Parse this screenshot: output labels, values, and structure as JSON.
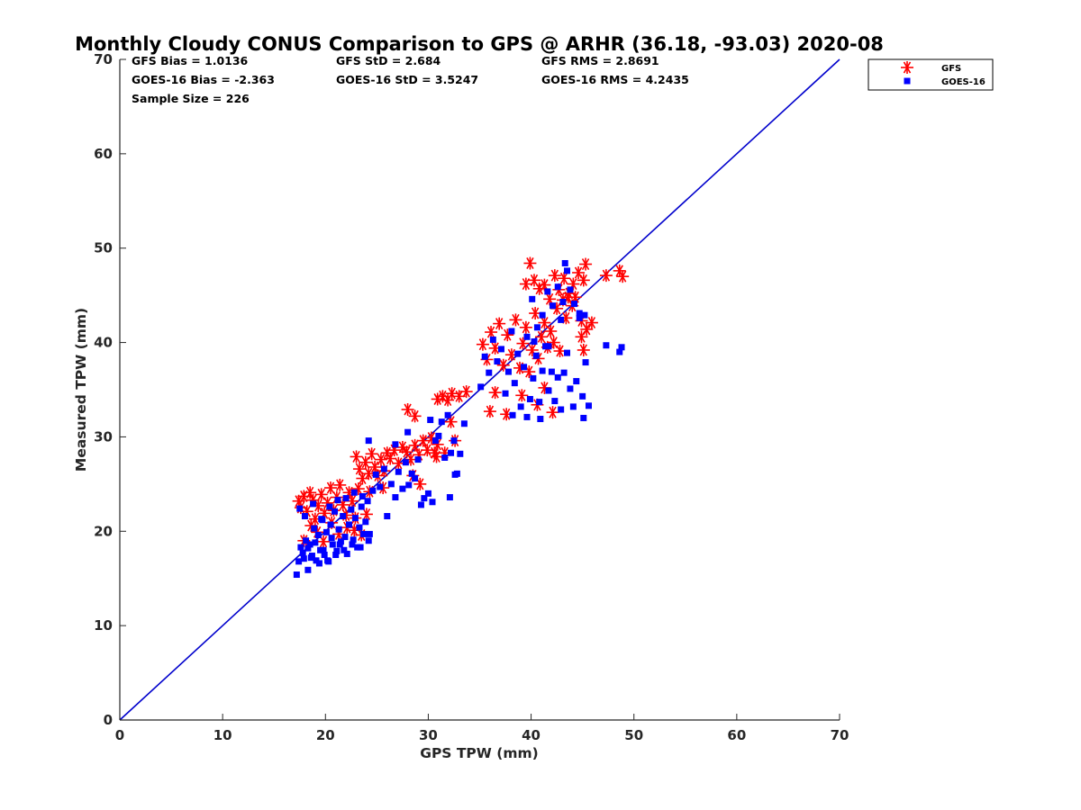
{
  "chart_data": {
    "type": "scatter",
    "title": "Monthly Cloudy CONUS Comparison to GPS @ ARHR (36.18, -93.03) 2020-08",
    "xlabel": "GPS TPW (mm)",
    "ylabel": "Measured TPW (mm)",
    "xlim": [
      0,
      70
    ],
    "ylim": [
      0,
      70
    ],
    "xticks": [
      "0",
      "10",
      "20",
      "30",
      "40",
      "50",
      "60",
      "70"
    ],
    "yticks": [
      "0",
      "10",
      "20",
      "30",
      "40",
      "50",
      "60",
      "70"
    ],
    "grid": false,
    "legend_position": "outside-top-right",
    "stats": [
      [
        "GFS Bias = 1.0136",
        "GFS StD = 2.684",
        "GFS RMS = 2.8691"
      ],
      [
        "GOES-16 Bias = -2.363",
        "GOES-16 StD = 3.5247",
        "GOES-16 RMS = 4.2435"
      ],
      [
        "Sample Size = 226"
      ]
    ],
    "reference_line": {
      "x": [
        0,
        70
      ],
      "y": [
        0,
        70
      ],
      "color": "#0000cc"
    },
    "series": [
      {
        "name": "GFS",
        "marker": "asterisk",
        "color": "#ff0000",
        "points": [
          [
            17.4,
            23.2
          ],
          [
            17.6,
            22.5
          ],
          [
            17.9,
            23.7
          ],
          [
            18.2,
            22.1
          ],
          [
            18.5,
            24.1
          ],
          [
            18.8,
            23.3
          ],
          [
            19.0,
            21.3
          ],
          [
            19.3,
            22.7
          ],
          [
            19.6,
            23.9
          ],
          [
            19.9,
            21.9
          ],
          [
            20.2,
            23.0
          ],
          [
            20.5,
            24.6
          ],
          [
            20.8,
            22.2
          ],
          [
            21.1,
            23.6
          ],
          [
            21.4,
            24.9
          ],
          [
            21.7,
            22.8
          ],
          [
            22.0,
            21.7
          ],
          [
            22.3,
            24.1
          ],
          [
            22.6,
            23.2
          ],
          [
            22.9,
            21.4
          ],
          [
            23.2,
            24.5
          ],
          [
            17.9,
            19.0
          ],
          [
            18.6,
            20.6
          ],
          [
            19.2,
            19.9
          ],
          [
            19.8,
            18.9
          ],
          [
            20.6,
            20.9
          ],
          [
            21.3,
            19.7
          ],
          [
            22.1,
            20.4
          ],
          [
            22.8,
            20.1
          ],
          [
            23.5,
            19.6
          ],
          [
            24.0,
            21.8
          ],
          [
            23.0,
            27.9
          ],
          [
            23.3,
            26.6
          ],
          [
            23.6,
            25.6
          ],
          [
            23.9,
            27.3
          ],
          [
            24.2,
            26.1
          ],
          [
            24.5,
            28.2
          ],
          [
            24.8,
            26.8
          ],
          [
            25.1,
            25.9
          ],
          [
            25.4,
            27.6
          ],
          [
            25.7,
            26.4
          ],
          [
            26.0,
            28.3
          ],
          [
            24.3,
            24.2
          ],
          [
            25.6,
            24.6
          ],
          [
            26.3,
            27.7
          ],
          [
            26.7,
            28.6
          ],
          [
            27.1,
            27.2
          ],
          [
            27.5,
            28.9
          ],
          [
            27.9,
            28.4
          ],
          [
            28.3,
            27.6
          ],
          [
            28.7,
            29.1
          ],
          [
            29.1,
            28.1
          ],
          [
            29.5,
            29.6
          ],
          [
            29.9,
            28.6
          ],
          [
            30.3,
            29.9
          ],
          [
            30.6,
            28.3
          ],
          [
            30.9,
            29.2
          ],
          [
            29.2,
            25.0
          ],
          [
            28.5,
            25.9
          ],
          [
            28.0,
            32.9
          ],
          [
            28.7,
            32.2
          ],
          [
            30.9,
            34.0
          ],
          [
            31.4,
            34.3
          ],
          [
            31.9,
            33.9
          ],
          [
            32.3,
            34.6
          ],
          [
            33.0,
            34.3
          ],
          [
            33.7,
            34.8
          ],
          [
            32.6,
            29.6
          ],
          [
            31.6,
            28.3
          ],
          [
            30.8,
            27.9
          ],
          [
            32.2,
            31.6
          ],
          [
            35.3,
            39.8
          ],
          [
            35.7,
            38.2
          ],
          [
            36.1,
            41.1
          ],
          [
            36.5,
            39.4
          ],
          [
            36.9,
            42.0
          ],
          [
            37.3,
            37.6
          ],
          [
            37.7,
            40.8
          ],
          [
            38.1,
            38.7
          ],
          [
            38.5,
            42.4
          ],
          [
            38.9,
            37.3
          ],
          [
            39.2,
            39.9
          ],
          [
            39.5,
            41.6
          ],
          [
            39.8,
            36.9
          ],
          [
            40.1,
            39.2
          ],
          [
            40.4,
            43.1
          ],
          [
            40.7,
            38.3
          ],
          [
            41.0,
            40.6
          ],
          [
            41.3,
            42.1
          ],
          [
            41.6,
            39.5
          ],
          [
            41.9,
            41.2
          ],
          [
            42.2,
            40.0
          ],
          [
            42.5,
            43.6
          ],
          [
            42.8,
            39.1
          ],
          [
            43.1,
            44.5
          ],
          [
            43.4,
            42.6
          ],
          [
            43.7,
            45.2
          ],
          [
            44.0,
            43.9
          ],
          [
            44.3,
            44.8
          ],
          [
            39.5,
            46.2
          ],
          [
            39.9,
            48.4
          ],
          [
            40.3,
            46.6
          ],
          [
            40.8,
            45.7
          ],
          [
            41.3,
            46.1
          ],
          [
            41.8,
            44.6
          ],
          [
            42.3,
            47.1
          ],
          [
            42.7,
            45.6
          ],
          [
            43.2,
            46.8
          ],
          [
            43.6,
            44.8
          ],
          [
            44.1,
            46.2
          ],
          [
            44.6,
            47.4
          ],
          [
            45.1,
            46.6
          ],
          [
            45.3,
            48.3
          ],
          [
            44.9,
            42.3
          ],
          [
            45.4,
            41.4
          ],
          [
            45.9,
            42.1
          ],
          [
            44.9,
            40.6
          ],
          [
            45.1,
            39.2
          ],
          [
            36.0,
            32.7
          ],
          [
            36.5,
            34.7
          ],
          [
            37.6,
            32.4
          ],
          [
            39.1,
            34.4
          ],
          [
            40.6,
            33.4
          ],
          [
            41.3,
            35.2
          ],
          [
            42.1,
            32.6
          ],
          [
            47.3,
            47.1
          ],
          [
            48.6,
            47.6
          ],
          [
            48.9,
            47.0
          ]
        ]
      },
      {
        "name": "GOES-16",
        "marker": "square",
        "color": "#0000ff",
        "points": [
          [
            17.2,
            15.4
          ],
          [
            17.4,
            16.8
          ],
          [
            17.6,
            18.3
          ],
          [
            17.9,
            17.1
          ],
          [
            18.1,
            19.0
          ],
          [
            18.3,
            15.9
          ],
          [
            18.5,
            18.6
          ],
          [
            18.7,
            17.4
          ],
          [
            18.9,
            20.3
          ],
          [
            19.1,
            16.9
          ],
          [
            19.3,
            19.6
          ],
          [
            19.5,
            18.0
          ],
          [
            19.7,
            21.2
          ],
          [
            19.9,
            17.5
          ],
          [
            20.1,
            19.9
          ],
          [
            20.3,
            16.8
          ],
          [
            20.5,
            20.7
          ],
          [
            20.7,
            18.6
          ],
          [
            20.9,
            22.1
          ],
          [
            21.1,
            17.9
          ],
          [
            21.3,
            20.2
          ],
          [
            21.5,
            18.9
          ],
          [
            21.7,
            21.6
          ],
          [
            21.9,
            19.4
          ],
          [
            22.1,
            17.6
          ],
          [
            22.3,
            20.7
          ],
          [
            22.5,
            22.3
          ],
          [
            22.7,
            19.1
          ],
          [
            22.9,
            21.4
          ],
          [
            23.1,
            18.3
          ],
          [
            23.3,
            20.4
          ],
          [
            23.5,
            22.6
          ],
          [
            23.7,
            19.7
          ],
          [
            23.9,
            21.0
          ],
          [
            24.1,
            23.2
          ],
          [
            24.3,
            19.7
          ],
          [
            17.5,
            22.4
          ],
          [
            18.0,
            21.6
          ],
          [
            18.8,
            22.9
          ],
          [
            19.6,
            21.3
          ],
          [
            20.4,
            22.6
          ],
          [
            21.2,
            23.3
          ],
          [
            22.0,
            23.5
          ],
          [
            22.8,
            24.1
          ],
          [
            23.6,
            23.7
          ],
          [
            17.8,
            17.7
          ],
          [
            18.6,
            17.2
          ],
          [
            19.4,
            16.6
          ],
          [
            20.2,
            16.9
          ],
          [
            21.0,
            17.5
          ],
          [
            21.8,
            18.0
          ],
          [
            22.6,
            18.6
          ],
          [
            23.4,
            18.3
          ],
          [
            24.2,
            19.0
          ],
          [
            18.3,
            18.2
          ],
          [
            19.0,
            18.8
          ],
          [
            19.8,
            18.0
          ],
          [
            20.6,
            19.3
          ],
          [
            21.4,
            18.6
          ],
          [
            24.2,
            29.6
          ],
          [
            24.6,
            24.3
          ],
          [
            24.9,
            26.0
          ],
          [
            25.3,
            24.7
          ],
          [
            25.7,
            26.6
          ],
          [
            26.0,
            21.6
          ],
          [
            26.4,
            25.0
          ],
          [
            26.8,
            23.6
          ],
          [
            27.1,
            26.3
          ],
          [
            27.5,
            24.5
          ],
          [
            27.8,
            27.3
          ],
          [
            28.1,
            24.9
          ],
          [
            28.4,
            26.1
          ],
          [
            28.7,
            25.6
          ],
          [
            29.0,
            27.6
          ],
          [
            29.3,
            22.8
          ],
          [
            29.6,
            23.5
          ],
          [
            30.0,
            24.0
          ],
          [
            30.4,
            23.1
          ],
          [
            30.7,
            29.6
          ],
          [
            31.0,
            30.1
          ],
          [
            31.3,
            31.6
          ],
          [
            31.6,
            27.8
          ],
          [
            31.9,
            32.3
          ],
          [
            32.2,
            28.3
          ],
          [
            32.5,
            29.6
          ],
          [
            32.8,
            26.1
          ],
          [
            33.1,
            28.2
          ],
          [
            33.5,
            31.4
          ],
          [
            32.1,
            23.6
          ],
          [
            32.6,
            26.0
          ],
          [
            30.2,
            31.8
          ],
          [
            26.8,
            29.2
          ],
          [
            28.0,
            30.5
          ],
          [
            35.1,
            35.3
          ],
          [
            35.5,
            38.5
          ],
          [
            35.9,
            36.8
          ],
          [
            36.3,
            40.3
          ],
          [
            36.7,
            38.0
          ],
          [
            37.1,
            39.3
          ],
          [
            37.5,
            34.6
          ],
          [
            37.8,
            36.9
          ],
          [
            38.1,
            41.2
          ],
          [
            38.4,
            35.7
          ],
          [
            38.7,
            38.8
          ],
          [
            39.0,
            33.2
          ],
          [
            39.3,
            37.4
          ],
          [
            39.6,
            40.6
          ],
          [
            39.9,
            34.0
          ],
          [
            40.2,
            36.2
          ],
          [
            40.5,
            38.6
          ],
          [
            40.8,
            33.7
          ],
          [
            41.1,
            37.0
          ],
          [
            41.4,
            39.6
          ],
          [
            41.7,
            34.9
          ],
          [
            42.0,
            36.9
          ],
          [
            42.3,
            33.8
          ],
          [
            42.6,
            36.3
          ],
          [
            42.9,
            32.9
          ],
          [
            43.2,
            36.8
          ],
          [
            43.5,
            38.9
          ],
          [
            43.8,
            35.1
          ],
          [
            44.1,
            33.2
          ],
          [
            44.4,
            35.9
          ],
          [
            44.7,
            42.6
          ],
          [
            45.0,
            34.3
          ],
          [
            45.3,
            37.9
          ],
          [
            45.6,
            33.3
          ],
          [
            38.2,
            32.3
          ],
          [
            39.6,
            32.1
          ],
          [
            40.9,
            31.9
          ],
          [
            45.1,
            32.0
          ],
          [
            47.3,
            39.7
          ],
          [
            48.6,
            39.0
          ],
          [
            48.8,
            39.5
          ],
          [
            40.1,
            44.6
          ],
          [
            40.6,
            41.6
          ],
          [
            41.1,
            42.9
          ],
          [
            41.6,
            45.4
          ],
          [
            42.1,
            43.9
          ],
          [
            42.6,
            45.9
          ],
          [
            43.1,
            44.3
          ],
          [
            43.3,
            48.4
          ],
          [
            43.5,
            47.6
          ],
          [
            43.8,
            45.6
          ],
          [
            44.2,
            44.1
          ],
          [
            44.7,
            43.1
          ],
          [
            45.2,
            42.9
          ],
          [
            42.9,
            42.4
          ],
          [
            41.7,
            39.6
          ],
          [
            40.3,
            40.1
          ]
        ]
      }
    ]
  }
}
